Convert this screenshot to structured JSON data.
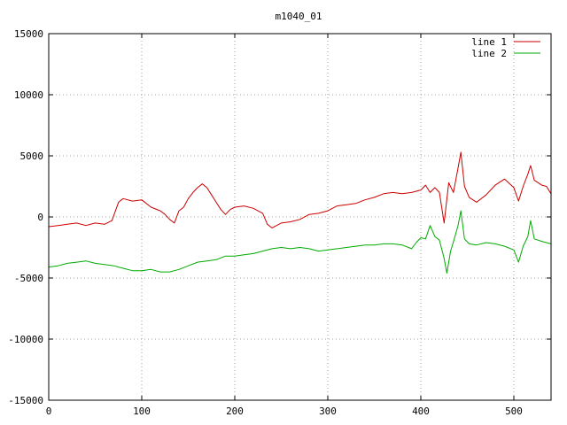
{
  "chart_data": {
    "type": "line",
    "title": "m1040_01",
    "xlabel": "",
    "ylabel": "",
    "xlim": [
      0,
      540
    ],
    "ylim": [
      -15000,
      15000
    ],
    "x_ticks": [
      0,
      100,
      200,
      300,
      400,
      500
    ],
    "y_ticks": [
      -15000,
      -10000,
      -5000,
      0,
      5000,
      10000,
      15000
    ],
    "grid": true,
    "legend_position": "top-right",
    "series": [
      {
        "name": "line 1",
        "color": "#cc0000",
        "points": [
          [
            0,
            -800
          ],
          [
            10,
            -700
          ],
          [
            20,
            -600
          ],
          [
            30,
            -500
          ],
          [
            40,
            -700
          ],
          [
            50,
            -500
          ],
          [
            60,
            -600
          ],
          [
            68,
            -300
          ],
          [
            75,
            1200
          ],
          [
            80,
            1500
          ],
          [
            90,
            1300
          ],
          [
            100,
            1400
          ],
          [
            110,
            800
          ],
          [
            120,
            500
          ],
          [
            125,
            200
          ],
          [
            130,
            -200
          ],
          [
            135,
            -500
          ],
          [
            140,
            500
          ],
          [
            145,
            800
          ],
          [
            150,
            1500
          ],
          [
            155,
            2000
          ],
          [
            160,
            2400
          ],
          [
            165,
            2700
          ],
          [
            170,
            2400
          ],
          [
            175,
            1800
          ],
          [
            180,
            1200
          ],
          [
            185,
            600
          ],
          [
            190,
            200
          ],
          [
            195,
            600
          ],
          [
            200,
            800
          ],
          [
            210,
            900
          ],
          [
            220,
            700
          ],
          [
            230,
            300
          ],
          [
            235,
            -600
          ],
          [
            240,
            -900
          ],
          [
            250,
            -500
          ],
          [
            260,
            -400
          ],
          [
            270,
            -200
          ],
          [
            280,
            200
          ],
          [
            290,
            300
          ],
          [
            300,
            500
          ],
          [
            310,
            900
          ],
          [
            320,
            1000
          ],
          [
            330,
            1100
          ],
          [
            340,
            1400
          ],
          [
            350,
            1600
          ],
          [
            360,
            1900
          ],
          [
            370,
            2000
          ],
          [
            380,
            1900
          ],
          [
            390,
            2000
          ],
          [
            400,
            2200
          ],
          [
            405,
            2600
          ],
          [
            410,
            2000
          ],
          [
            415,
            2400
          ],
          [
            420,
            2000
          ],
          [
            425,
            -500
          ],
          [
            430,
            2800
          ],
          [
            435,
            2000
          ],
          [
            440,
            4000
          ],
          [
            443,
            5300
          ],
          [
            447,
            2500
          ],
          [
            452,
            1600
          ],
          [
            460,
            1200
          ],
          [
            470,
            1800
          ],
          [
            480,
            2600
          ],
          [
            490,
            3100
          ],
          [
            500,
            2400
          ],
          [
            505,
            1300
          ],
          [
            510,
            2500
          ],
          [
            515,
            3500
          ],
          [
            518,
            4200
          ],
          [
            522,
            3000
          ],
          [
            530,
            2600
          ],
          [
            535,
            2500
          ],
          [
            540,
            1900
          ]
        ]
      },
      {
        "name": "line 2",
        "color": "#00aa00",
        "points": [
          [
            0,
            -4100
          ],
          [
            10,
            -4000
          ],
          [
            20,
            -3800
          ],
          [
            30,
            -3700
          ],
          [
            40,
            -3600
          ],
          [
            50,
            -3800
          ],
          [
            60,
            -3900
          ],
          [
            70,
            -4000
          ],
          [
            80,
            -4200
          ],
          [
            90,
            -4400
          ],
          [
            100,
            -4400
          ],
          [
            110,
            -4300
          ],
          [
            120,
            -4500
          ],
          [
            130,
            -4500
          ],
          [
            140,
            -4300
          ],
          [
            150,
            -4000
          ],
          [
            160,
            -3700
          ],
          [
            170,
            -3600
          ],
          [
            180,
            -3500
          ],
          [
            190,
            -3200
          ],
          [
            200,
            -3200
          ],
          [
            210,
            -3100
          ],
          [
            220,
            -3000
          ],
          [
            230,
            -2800
          ],
          [
            240,
            -2600
          ],
          [
            250,
            -2500
          ],
          [
            260,
            -2600
          ],
          [
            270,
            -2500
          ],
          [
            280,
            -2600
          ],
          [
            290,
            -2800
          ],
          [
            300,
            -2700
          ],
          [
            310,
            -2600
          ],
          [
            320,
            -2500
          ],
          [
            330,
            -2400
          ],
          [
            340,
            -2300
          ],
          [
            350,
            -2300
          ],
          [
            360,
            -2200
          ],
          [
            370,
            -2200
          ],
          [
            380,
            -2300
          ],
          [
            390,
            -2600
          ],
          [
            395,
            -2100
          ],
          [
            400,
            -1700
          ],
          [
            405,
            -1800
          ],
          [
            410,
            -700
          ],
          [
            415,
            -1600
          ],
          [
            420,
            -1900
          ],
          [
            425,
            -3400
          ],
          [
            428,
            -4600
          ],
          [
            432,
            -2800
          ],
          [
            436,
            -1800
          ],
          [
            440,
            -700
          ],
          [
            443,
            500
          ],
          [
            447,
            -1800
          ],
          [
            452,
            -2200
          ],
          [
            460,
            -2300
          ],
          [
            470,
            -2100
          ],
          [
            480,
            -2200
          ],
          [
            490,
            -2400
          ],
          [
            500,
            -2700
          ],
          [
            505,
            -3700
          ],
          [
            510,
            -2400
          ],
          [
            515,
            -1600
          ],
          [
            518,
            -300
          ],
          [
            522,
            -1800
          ],
          [
            530,
            -2000
          ],
          [
            540,
            -2200
          ]
        ]
      }
    ]
  }
}
